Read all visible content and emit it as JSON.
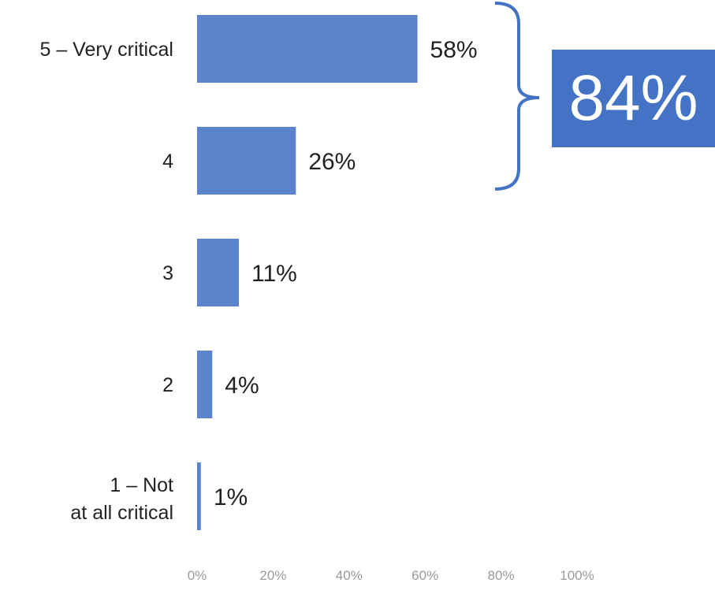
{
  "chart_data": {
    "type": "bar",
    "orientation": "horizontal",
    "categories": [
      "5 – Very critical",
      "4",
      "3",
      "2",
      "1 – Not at all critical"
    ],
    "values": [
      58,
      26,
      11,
      4,
      1
    ],
    "data_labels": [
      "58%",
      "26%",
      "11%",
      "4%",
      "1%"
    ],
    "x_ticks": [
      "0%",
      "20%",
      "40%",
      "60%",
      "80%",
      "100%"
    ],
    "xlim": [
      0,
      100
    ],
    "grid": false,
    "bar_color": "#5B84CC",
    "callout": {
      "value": "84%",
      "bracketed_categories": [
        "5 – Very critical",
        "4"
      ],
      "box_color": "#4472C4",
      "bracket_color": "#4472C4"
    }
  }
}
